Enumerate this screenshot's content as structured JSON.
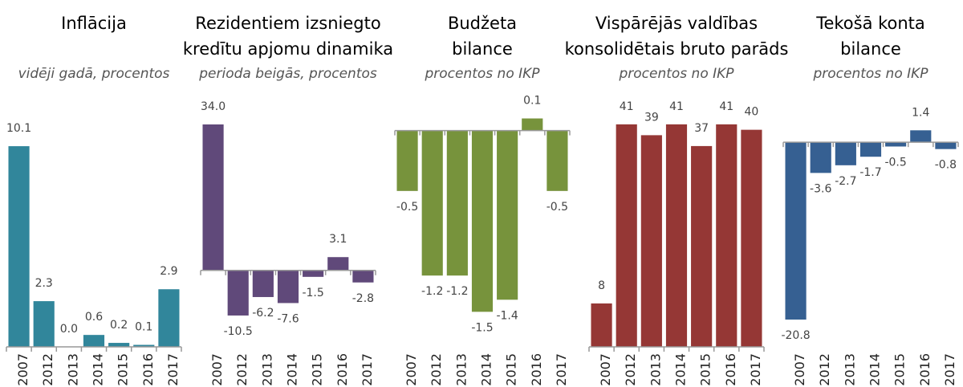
{
  "chart_data": [
    {
      "type": "bar",
      "title": [
        "Inflācija"
      ],
      "subtitle": "vidēji gadā, procentos",
      "categories": [
        "2007",
        "2012",
        "2013",
        "2014",
        "2015",
        "2016",
        "2017"
      ],
      "values": [
        10.1,
        2.3,
        0.0,
        0.6,
        0.2,
        0.1,
        2.9
      ],
      "value_labels": [
        "10.1",
        "2.3",
        "0.0",
        "0.6",
        "0.2",
        "0.1",
        "2.9"
      ],
      "color": "#31869b",
      "ylim": [
        0,
        11.8
      ]
    },
    {
      "type": "bar",
      "title": [
        "Rezidentiem izsniegto",
        "kredītu apjomu dinamika"
      ],
      "subtitle": "perioda beigās, procentos",
      "categories": [
        "2007",
        "2012",
        "2013",
        "2014",
        "2015",
        "2016",
        "2017"
      ],
      "values": [
        34.0,
        -10.5,
        -6.2,
        -7.6,
        -1.5,
        3.1,
        -2.8
      ],
      "value_labels": [
        "34.0",
        "-10.5",
        "-6.2",
        "-7.6",
        "-1.5",
        "3.1",
        "-2.8"
      ],
      "color": "#60497a",
      "ylim": [
        -17.8,
        36.8
      ]
    },
    {
      "type": "bar",
      "title": [
        "Budžeta",
        "bilance"
      ],
      "subtitle": "procentos no IKP",
      "categories": [
        "2007",
        "2012",
        "2013",
        "2014",
        "2015",
        "2016",
        "2017"
      ],
      "values": [
        -0.5,
        -1.2,
        -1.2,
        -1.5,
        -1.4,
        0.1,
        -0.5
      ],
      "value_labels": [
        "-0.5",
        "-1.2",
        "-1.2",
        "-1.5",
        "-1.4",
        "0.1",
        "-0.5"
      ],
      "color": "#77933c",
      "ylim": [
        -1.79,
        0.15
      ]
    },
    {
      "type": "bar",
      "title": [
        "Vispārējās valdības",
        "konsolidētais bruto parāds"
      ],
      "subtitle": "procentos no IKP",
      "categories": [
        "2007",
        "2012",
        "2013",
        "2014",
        "2015",
        "2016",
        "2017"
      ],
      "values": [
        8,
        41,
        39,
        41,
        37,
        41,
        40
      ],
      "value_labels": [
        "8",
        "41",
        "39",
        "41",
        "37",
        "41",
        "40"
      ],
      "color": "#953735",
      "ylim": [
        0,
        43.2
      ]
    },
    {
      "type": "bar",
      "title": [
        "Tekošā konta",
        "bilance"
      ],
      "subtitle": "procentos no IKP",
      "categories": [
        "2007",
        "2012",
        "2013",
        "2014",
        "2015",
        "2016",
        "2017"
      ],
      "values": [
        -20.8,
        -3.6,
        -2.7,
        -1.7,
        -0.5,
        1.4,
        -0.8
      ],
      "value_labels": [
        "-20.8",
        "-3.6",
        "-2.7",
        "-1.7",
        "-0.5",
        "1.4",
        "-0.8"
      ],
      "color": "#366092",
      "ylim": [
        -24,
        3.5
      ]
    }
  ]
}
